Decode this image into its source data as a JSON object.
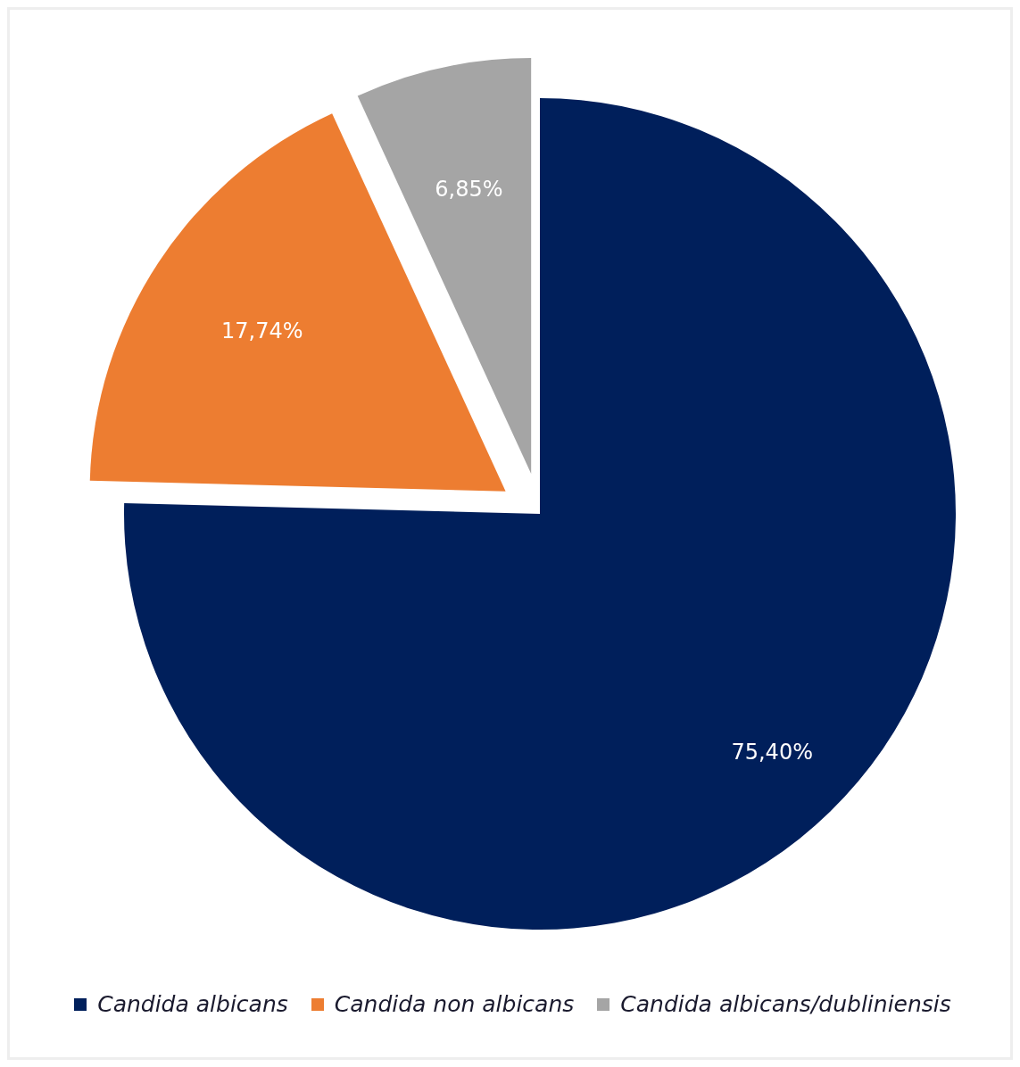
{
  "chart_data": {
    "type": "pie",
    "categories": [
      "Candida albicans",
      "Candida non albicans",
      "Candida albicans/dubliniensis"
    ],
    "values": [
      75.4,
      17.74,
      6.85
    ],
    "colors": [
      "#001f5b",
      "#ed7d31",
      "#a5a5a5"
    ],
    "value_labels": [
      "75,40%",
      "17,74%",
      "6,85%"
    ],
    "legend": "bottom"
  }
}
